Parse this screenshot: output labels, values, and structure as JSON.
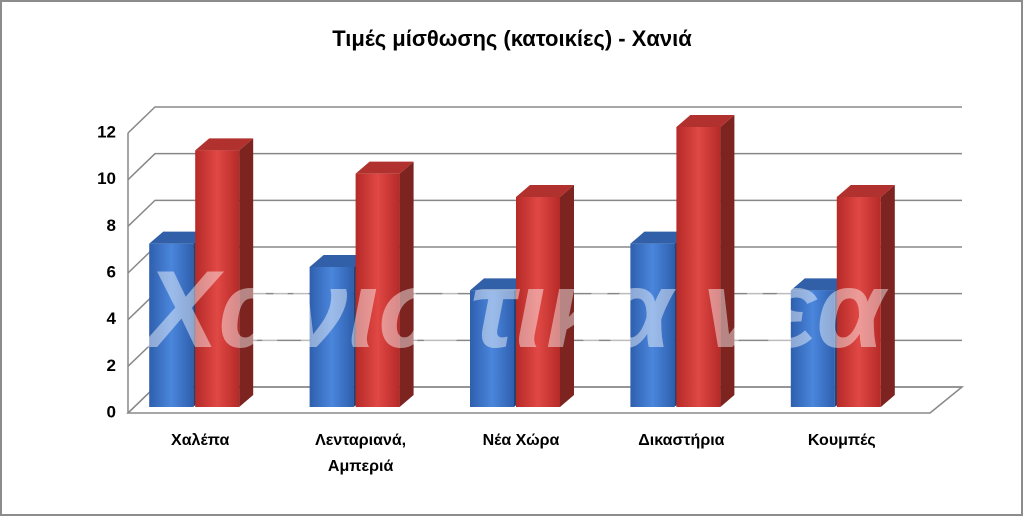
{
  "chart_data": {
    "type": "bar3d",
    "title": "Τιμές μίσθωσης (κατοικίες) - Χανιά",
    "watermark": "Χανιώτικα νέα",
    "categories": [
      "Χαλέπα",
      "Λενταριανά, Αμπεριά",
      "Νέα Χώρα",
      "Δικαστήρια",
      "Κουμπές"
    ],
    "series": [
      {
        "color": "#3a70c6",
        "values": [
          7,
          6,
          5,
          7,
          5
        ]
      },
      {
        "color": "#d03a36",
        "values": [
          11,
          10,
          9,
          12,
          9
        ]
      }
    ],
    "ylim": [
      0,
      12
    ],
    "yticks": [
      0,
      2,
      4,
      6,
      8,
      10,
      12
    ],
    "grid": true
  }
}
